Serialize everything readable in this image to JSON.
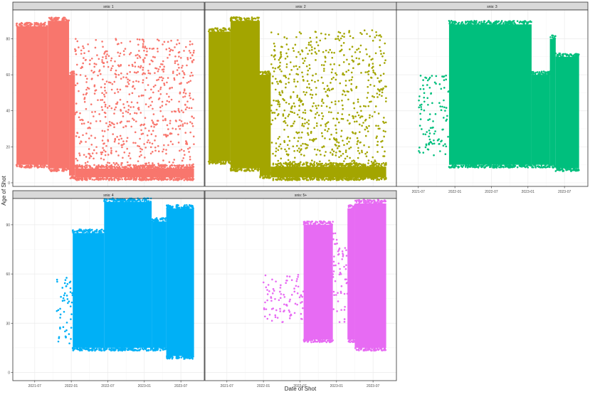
{
  "chart_data": {
    "type": "scatter",
    "title": "",
    "xlabel": "Date of Shot",
    "ylabel": "Age of Shot",
    "theme": "bw",
    "x_ticks": [
      "2021-07",
      "2022-01",
      "2022-07",
      "2023-01",
      "2023-07"
    ],
    "x_tick_values": [
      2021.5,
      2022.0,
      2022.5,
      2023.0,
      2023.5
    ],
    "xlim": [
      2021.2,
      2023.82
    ],
    "ylim": [
      -5,
      96
    ],
    "y_ticks": [
      0,
      30,
      60,
      90
    ],
    "grid": true,
    "legend": "none",
    "panels": [
      {
        "strip": "snis: 1",
        "color": "#F8766D",
        "y_ticks": [
          0,
          20,
          40,
          60,
          80
        ],
        "ylim": [
          -2,
          96
        ],
        "dense_regions": [
          {
            "x": [
              2021.25,
              2021.68
            ],
            "y": [
              10,
              87
            ]
          },
          {
            "x": [
              2021.68,
              2021.97
            ],
            "y": [
              8,
              90
            ]
          },
          {
            "x": [
              2021.97,
              2022.05
            ],
            "y": [
              4,
              60
            ]
          },
          {
            "x": [
              2022.05,
              2023.68
            ],
            "y": [
              3,
              8
            ]
          },
          {
            "x": [
              2022.05,
              2023.68
            ],
            "y": [
              2,
              80
            ],
            "sparse": true
          }
        ]
      },
      {
        "strip": "snis: 2",
        "color": "#A3A500",
        "y_ticks": [
          0,
          20,
          40,
          60,
          80
        ],
        "ylim": [
          -2,
          96
        ],
        "dense_regions": [
          {
            "x": [
              2021.25,
              2021.55
            ],
            "y": [
              12,
              84
            ]
          },
          {
            "x": [
              2021.55,
              2021.95
            ],
            "y": [
              8,
              90
            ]
          },
          {
            "x": [
              2021.95,
              2022.1
            ],
            "y": [
              4,
              60
            ]
          },
          {
            "x": [
              2022.1,
              2023.68
            ],
            "y": [
              3,
              9
            ]
          },
          {
            "x": [
              2022.1,
              2023.68
            ],
            "y": [
              2,
              85
            ],
            "sparse": true
          }
        ]
      },
      {
        "strip": "snis: 3",
        "color": "#00BF7D",
        "y_ticks": [
          0,
          20,
          40,
          60,
          80
        ],
        "ylim": [
          -2,
          96
        ],
        "dense_regions": [
          {
            "x": [
              2021.92,
              2023.05
            ],
            "y": [
              10,
              88
            ]
          },
          {
            "x": [
              2023.05,
              2023.3
            ],
            "y": [
              10,
              60
            ]
          },
          {
            "x": [
              2023.3,
              2023.38
            ],
            "y": [
              10,
              80
            ]
          },
          {
            "x": [
              2023.38,
              2023.7
            ],
            "y": [
              8,
              70
            ]
          },
          {
            "x": [
              2021.5,
              2021.92
            ],
            "y": [
              15,
              60
            ],
            "sparse": true
          }
        ]
      },
      {
        "strip": "snis: 4",
        "color": "#00B0F6",
        "y_ticks": [
          0,
          30,
          60,
          90
        ],
        "ylim": [
          -5,
          106
        ],
        "dense_regions": [
          {
            "x": [
              2022.02,
              2022.45
            ],
            "y": [
              15,
              85
            ]
          },
          {
            "x": [
              2022.45,
              2023.1
            ],
            "y": [
              15,
              104
            ]
          },
          {
            "x": [
              2023.1,
              2023.3
            ],
            "y": [
              15,
              92
            ]
          },
          {
            "x": [
              2023.3,
              2023.68
            ],
            "y": [
              10,
              100
            ]
          },
          {
            "x": [
              2021.8,
              2022.02
            ],
            "y": [
              15,
              60
            ],
            "sparse": true
          }
        ]
      },
      {
        "strip": "snis: 5+",
        "color": "#E76BF3",
        "y_ticks": [
          0,
          30,
          60,
          90
        ],
        "ylim": [
          -5,
          106
        ],
        "dense_regions": [
          {
            "x": [
              2022.55,
              2022.95
            ],
            "y": [
              20,
              90
            ]
          },
          {
            "x": [
              2022.95,
              2023.15
            ],
            "y": [
              30,
              85
            ],
            "sparse": true
          },
          {
            "x": [
              2023.15,
              2023.25
            ],
            "y": [
              20,
              100
            ]
          },
          {
            "x": [
              2023.25,
              2023.68
            ],
            "y": [
              15,
              103
            ]
          },
          {
            "x": [
              2022.0,
              2022.55
            ],
            "y": [
              30,
              60
            ],
            "sparse": true
          }
        ]
      }
    ]
  }
}
